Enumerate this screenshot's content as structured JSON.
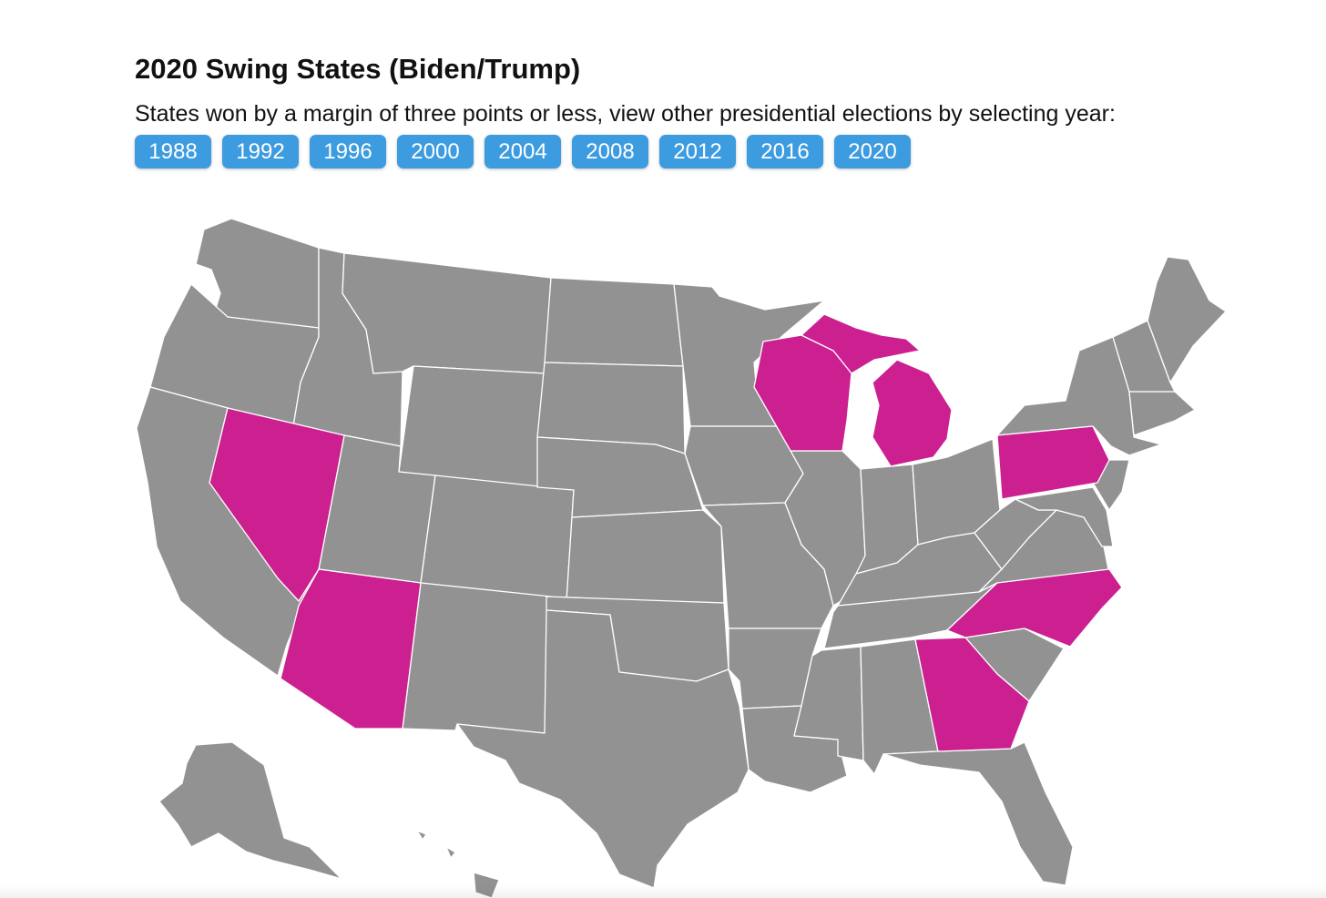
{
  "header": {
    "title": "2020 Swing States (Biden/Trump)",
    "subtitle": "States won by a margin of three points or less, view other presidential elections by selecting year:"
  },
  "years": [
    "1988",
    "1992",
    "1996",
    "2000",
    "2004",
    "2008",
    "2012",
    "2016",
    "2020"
  ],
  "selected_year": "2020",
  "map": {
    "swing_states": [
      "Nevada",
      "Arizona",
      "Wisconsin",
      "Michigan",
      "Pennsylvania",
      "Georgia",
      "North Carolina"
    ],
    "colors": {
      "swing": "#cc2090",
      "other": "#929292",
      "border": "#ffffff",
      "button": "#3d9be0"
    }
  }
}
